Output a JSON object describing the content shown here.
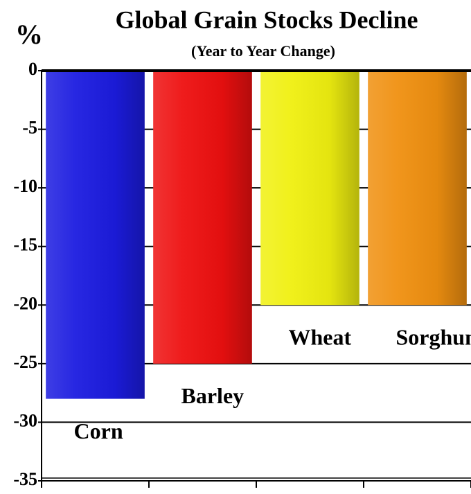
{
  "chart_data": {
    "type": "bar",
    "title": "Global Grain Stocks Decline",
    "subtitle": "(Year to Year Change)",
    "y_label": "%",
    "categories": [
      "Corn",
      "Barley",
      "Wheat",
      "Sorghum"
    ],
    "values": [
      -28,
      -25,
      -20,
      -20
    ],
    "colors": [
      "#1c1ce0",
      "#ee1010",
      "#f0f010",
      "#f09010"
    ],
    "ylim": [
      -35,
      0
    ],
    "yticks": [
      0,
      -5,
      -10,
      -15,
      -20,
      -25,
      -30,
      -35
    ],
    "grid": true
  }
}
